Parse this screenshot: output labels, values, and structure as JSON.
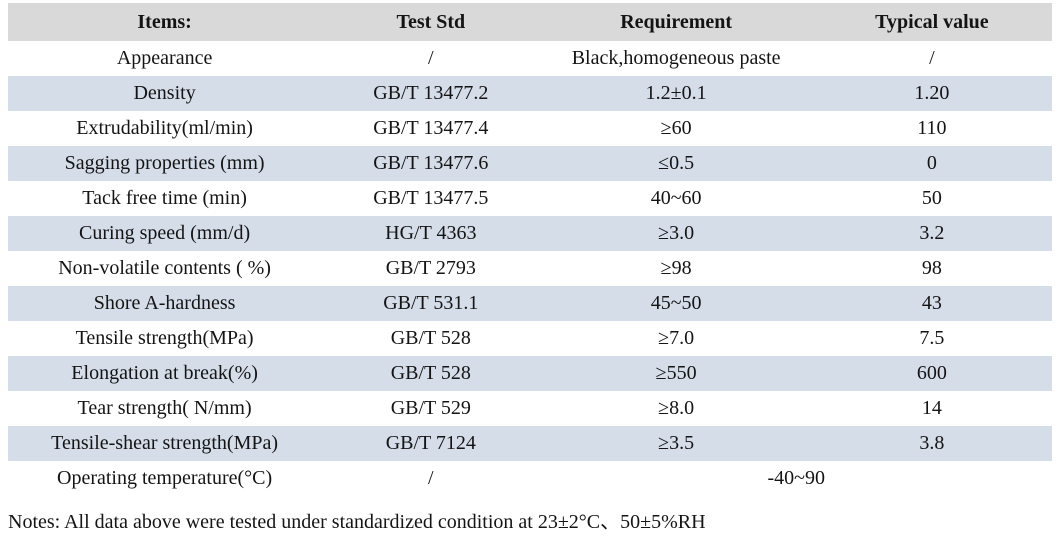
{
  "table": {
    "headers": {
      "items": "Items:",
      "test_std": "Test Std",
      "requirement": "Requirement",
      "typical_value": "Typical value"
    },
    "rows": [
      {
        "item": "Appearance",
        "std": "/",
        "req": "Black,homogeneous paste",
        "typ": "/"
      },
      {
        "item": "Density",
        "std": "GB/T 13477.2",
        "req": "1.2±0.1",
        "typ": "1.20"
      },
      {
        "item": "Extrudability(ml/min)",
        "std": "GB/T 13477.4",
        "req": "≥60",
        "typ": "110"
      },
      {
        "item": "Sagging properties (mm)",
        "std": "GB/T 13477.6",
        "req": "≤0.5",
        "typ": "0"
      },
      {
        "item": "Tack free time (min)",
        "std": "GB/T 13477.5",
        "req": "40~60",
        "typ": "50"
      },
      {
        "item": "Curing speed (mm/d)",
        "std": "HG/T 4363",
        "req": "≥3.0",
        "typ": "3.2"
      },
      {
        "item": "Non-volatile contents ( %)",
        "std": "GB/T 2793",
        "req": "≥98",
        "typ": "98"
      },
      {
        "item": "Shore A-hardness",
        "std": "GB/T 531.1",
        "req": "45~50",
        "typ": "43"
      },
      {
        "item": "Tensile strength(MPa)",
        "std": "GB/T 528",
        "req": "≥7.0",
        "typ": "7.5"
      },
      {
        "item": "Elongation at break(%)",
        "std": "GB/T 528",
        "req": "≥550",
        "typ": "600"
      },
      {
        "item": "Tear strength( N/mm)",
        "std": "GB/T 529",
        "req": "≥8.0",
        "typ": "14"
      },
      {
        "item": "Tensile-shear strength(MPa)",
        "std": "GB/T 7124",
        "req": "≥3.5",
        "typ": "3.8"
      },
      {
        "item": "Operating temperature(°C)",
        "std": "/",
        "req": "-40~90",
        "typ": null,
        "merged": true
      }
    ],
    "colors": {
      "header_bg": "#d9d9d9",
      "stripe_bg": "#d5dde9"
    }
  },
  "notes": "Notes: All data above were tested under standardized condition at 23±2°C、50±5%RH"
}
